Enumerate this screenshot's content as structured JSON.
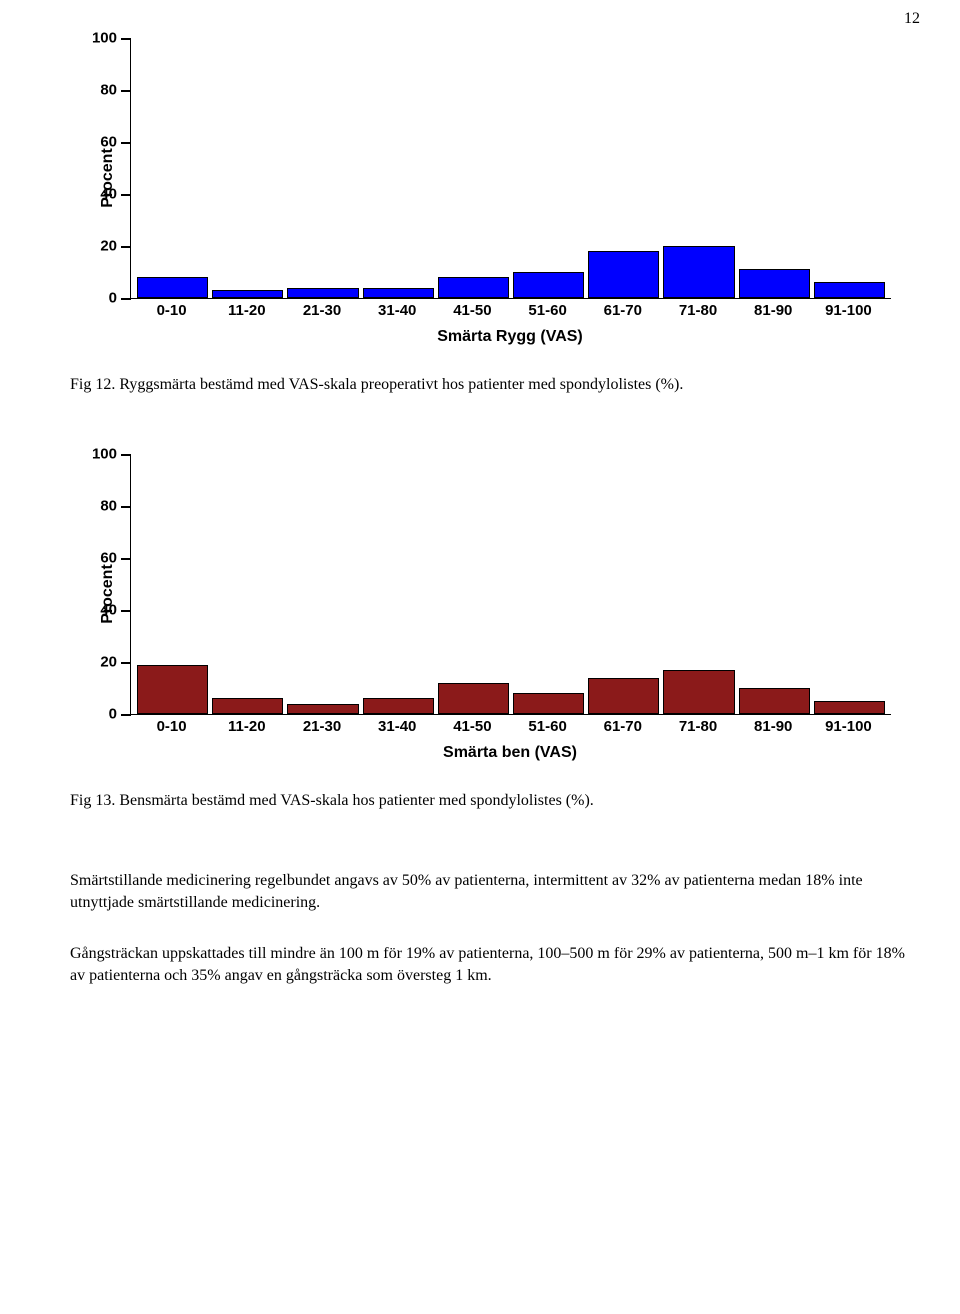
{
  "page_number": "12",
  "chart1": {
    "type": "bar",
    "y_label": "Procent",
    "x_title": "Smärta Rygg (VAS)",
    "ylim": [
      0,
      100
    ],
    "ytick_step": 20,
    "yticks": [
      0,
      20,
      40,
      60,
      80,
      100
    ],
    "categories": [
      "0-10",
      "11-20",
      "21-30",
      "31-40",
      "41-50",
      "51-60",
      "61-70",
      "71-80",
      "81-90",
      "91-100"
    ],
    "values": [
      8,
      3,
      4,
      4,
      8,
      10,
      18,
      20,
      11,
      6
    ],
    "bar_color": "#0000ff",
    "bar_border": "#000000",
    "background": "#ffffff"
  },
  "caption1": "Fig 12. Ryggsmärta bestämd med VAS-skala preoperativt hos patienter med spondylolistes (%).",
  "chart2": {
    "type": "bar",
    "y_label": "Procent",
    "x_title": "Smärta ben (VAS)",
    "ylim": [
      0,
      100
    ],
    "ytick_step": 20,
    "yticks": [
      0,
      20,
      40,
      60,
      80,
      100
    ],
    "categories": [
      "0-10",
      "11-20",
      "21-30",
      "31-40",
      "41-50",
      "51-60",
      "61-70",
      "71-80",
      "81-90",
      "91-100"
    ],
    "values": [
      19,
      6,
      4,
      6,
      12,
      8,
      14,
      17,
      10,
      5
    ],
    "bar_color": "#8b1a1a",
    "bar_border": "#000000",
    "background": "#ffffff"
  },
  "caption2": "Fig 13. Bensmärta bestämd med VAS-skala hos patienter med spondylolistes (%).",
  "paragraph1": "Smärtstillande medicinering regelbundet angavs av 50% av patienterna, intermittent av 32% av patienterna medan 18% inte utnyttjade smärtstillande medicinering.",
  "paragraph2": "Gångsträckan uppskattades till mindre än 100 m för 19% av patienterna, 100–500 m för 29% av patienterna, 500 m–1 km för 18% av patienterna och 35% angav en gångsträcka som översteg 1 km."
}
